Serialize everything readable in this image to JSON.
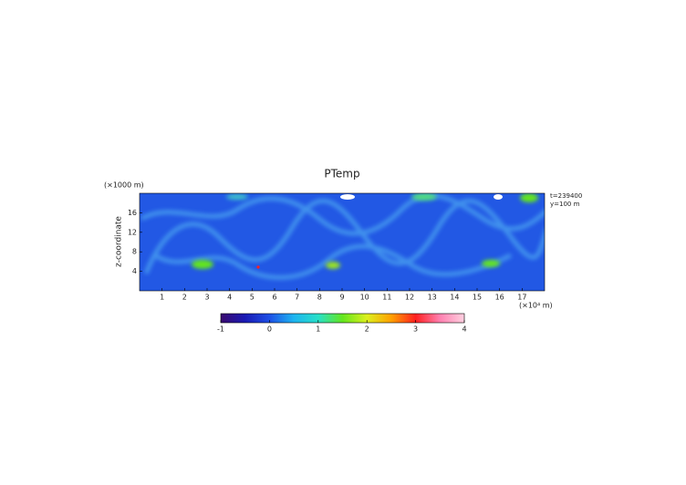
{
  "chart_data": {
    "type": "heatmap",
    "title": "PTemp",
    "y_unit_label": "(×1000 m)",
    "ylabel": "z-coordinate",
    "x_unit_label": "(×10⁴ m)",
    "annotations": [
      "t=239400",
      "y=100 m"
    ],
    "xlim": [
      0,
      18
    ],
    "xticks": [
      1,
      2,
      3,
      4,
      5,
      6,
      7,
      8,
      9,
      10,
      11,
      12,
      13,
      14,
      15,
      16,
      17
    ],
    "ylim": [
      0,
      20
    ],
    "yticks": [
      4,
      8,
      12,
      16
    ],
    "clim": [
      -1,
      4
    ],
    "cticks": [
      -1,
      0,
      1,
      2,
      3,
      4
    ],
    "colormap": [
      "#3a0a6e",
      "#1a1ab4",
      "#1e50e6",
      "#1eb4f0",
      "#28e0c8",
      "#64e61e",
      "#dcf01e",
      "#ffa000",
      "#ff2020",
      "#ff80b0",
      "#ffd0e0"
    ]
  }
}
